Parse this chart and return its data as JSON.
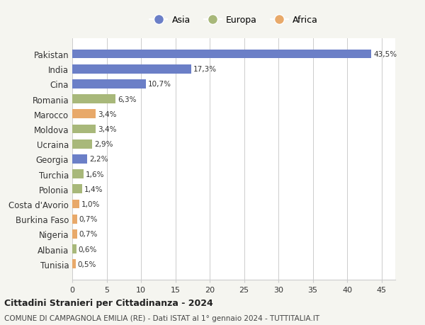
{
  "countries": [
    "Pakistan",
    "India",
    "Cina",
    "Romania",
    "Marocco",
    "Moldova",
    "Ucraina",
    "Georgia",
    "Turchia",
    "Polonia",
    "Costa d'Avorio",
    "Burkina Faso",
    "Nigeria",
    "Albania",
    "Tunisia"
  ],
  "values": [
    43.5,
    17.3,
    10.7,
    6.3,
    3.4,
    3.4,
    2.9,
    2.2,
    1.6,
    1.4,
    1.0,
    0.7,
    0.7,
    0.6,
    0.5
  ],
  "labels": [
    "43,5%",
    "17,3%",
    "10,7%",
    "6,3%",
    "3,4%",
    "3,4%",
    "2,9%",
    "2,2%",
    "1,6%",
    "1,4%",
    "1,0%",
    "0,7%",
    "0,7%",
    "0,6%",
    "0,5%"
  ],
  "colors": [
    "#6b7fc7",
    "#6b7fc7",
    "#6b7fc7",
    "#a8b87a",
    "#e8a96a",
    "#a8b87a",
    "#a8b87a",
    "#6b7fc7",
    "#a8b87a",
    "#a8b87a",
    "#e8a96a",
    "#e8a96a",
    "#e8a96a",
    "#a8b87a",
    "#e8a96a"
  ],
  "legend_labels": [
    "Asia",
    "Europa",
    "Africa"
  ],
  "legend_colors": [
    "#6b7fc7",
    "#a8b87a",
    "#e8a96a"
  ],
  "title": "Cittadini Stranieri per Cittadinanza - 2024",
  "subtitle": "COMUNE DI CAMPAGNOLA EMILIA (RE) - Dati ISTAT al 1° gennaio 2024 - TUTTITALIA.IT",
  "xlim": [
    0,
    47
  ],
  "xticks": [
    0,
    5,
    10,
    15,
    20,
    25,
    30,
    35,
    40,
    45
  ],
  "background_color": "#f5f5f0",
  "bar_background": "#ffffff",
  "grid_color": "#cccccc"
}
